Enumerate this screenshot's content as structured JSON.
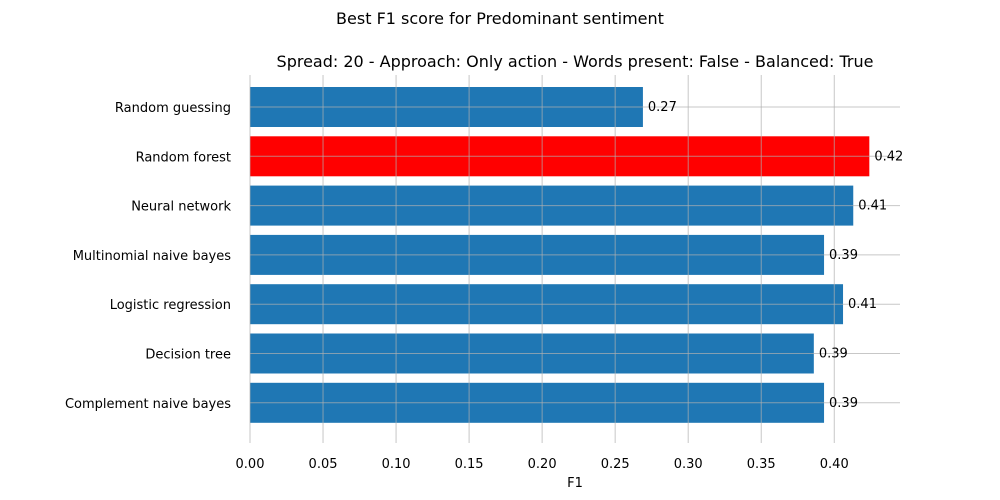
{
  "chart_data": {
    "type": "bar",
    "orientation": "horizontal",
    "suptitle": "Best F1 score for Predominant sentiment",
    "title": "Spread: 20 - Approach: Only action - Words present: False - Balanced: True",
    "xlabel": "F1",
    "ylabel": "",
    "categories": [
      "Random guessing",
      "Random forest",
      "Neural network",
      "Multinomial naive bayes",
      "Logistic regression",
      "Decision tree",
      "Complement naive bayes"
    ],
    "values": [
      0.269,
      0.424,
      0.413,
      0.393,
      0.406,
      0.386,
      0.393
    ],
    "data_labels": [
      "0.27",
      "0.42",
      "0.41",
      "0.39",
      "0.41",
      "0.39",
      "0.39"
    ],
    "highlight_index": 1,
    "xlim": [
      0,
      0.445
    ],
    "xticks": [
      0.0,
      0.05,
      0.1,
      0.15,
      0.2,
      0.25,
      0.3,
      0.35,
      0.4
    ],
    "xtick_labels": [
      "0.00",
      "0.05",
      "0.10",
      "0.15",
      "0.20",
      "0.25",
      "0.30",
      "0.35",
      "0.40"
    ],
    "grid": true,
    "colors": {
      "bar": "#1f77b4",
      "highlight": "#ff0000"
    }
  }
}
